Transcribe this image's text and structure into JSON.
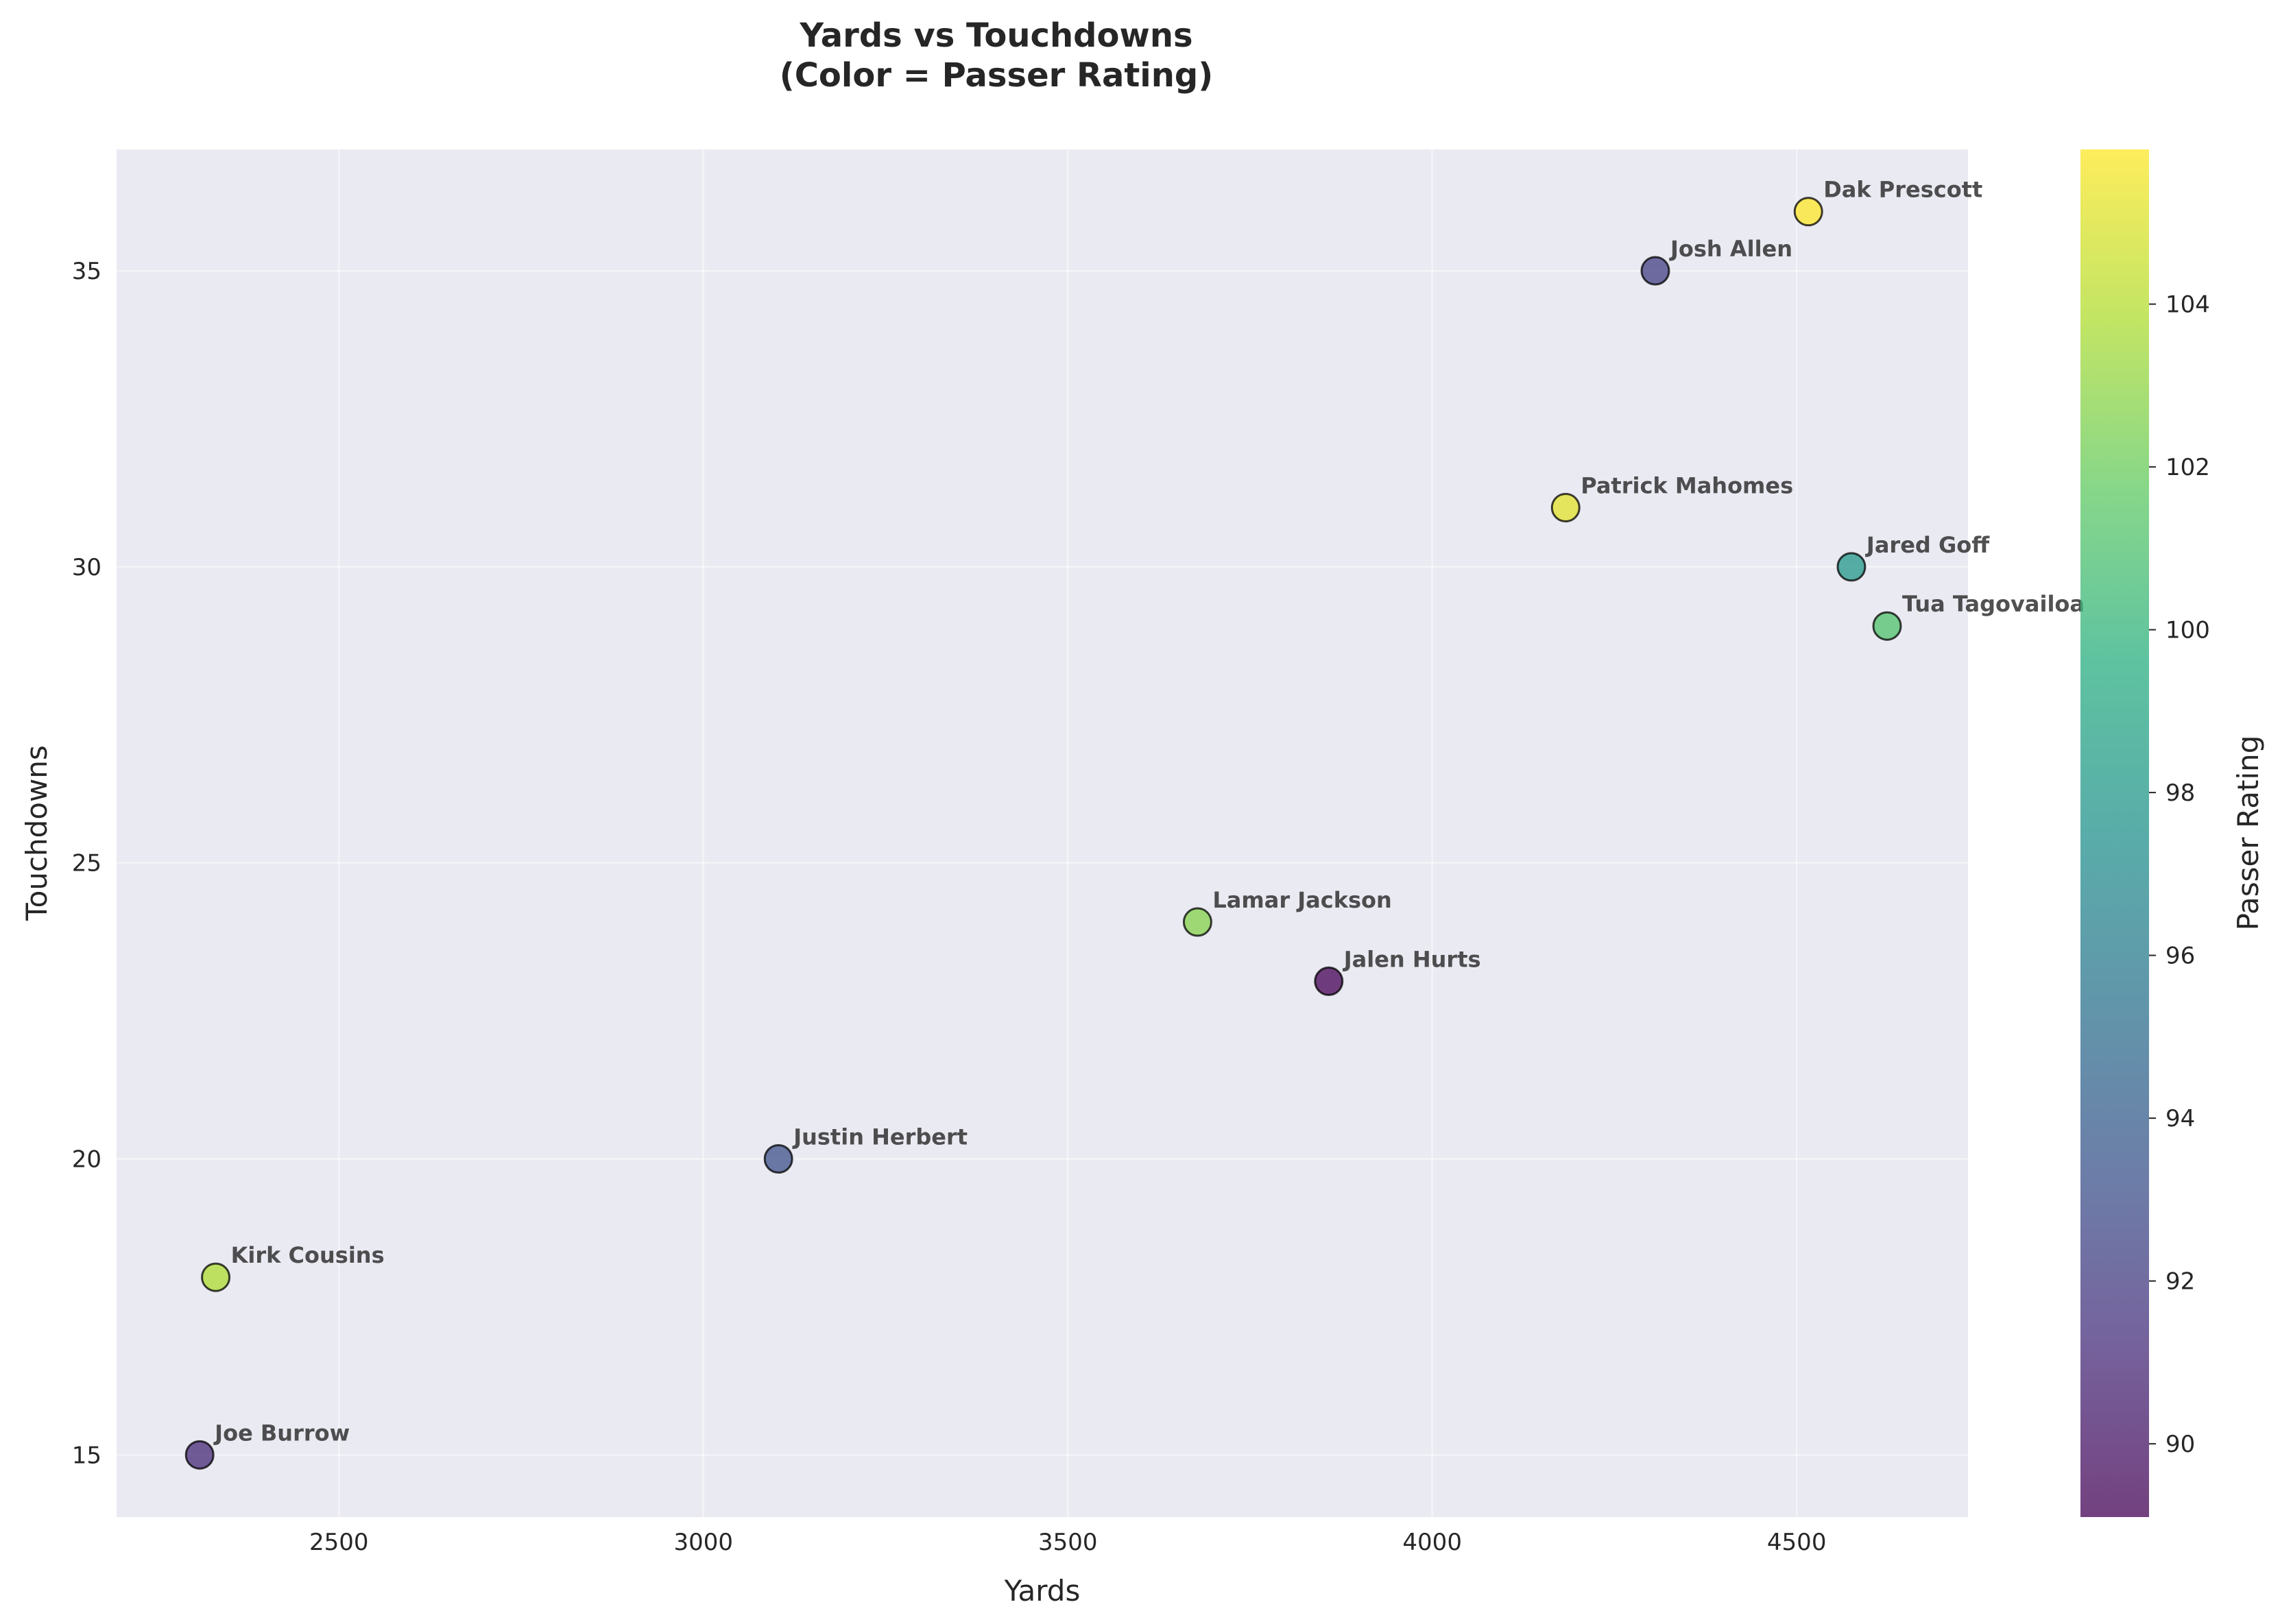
{
  "chart_data": {
    "type": "scatter",
    "title": "Yards vs Touchdowns\n(Color = Passer Rating)",
    "xlabel": "Yards",
    "ylabel": "Touchdowns",
    "colorbar_label": "Passer Rating",
    "xlim": [
      2195,
      4735
    ],
    "ylim": [
      13.95,
      37.05
    ],
    "xticks": [
      2500,
      3000,
      3500,
      4000,
      4500
    ],
    "yticks": [
      15,
      20,
      25,
      30,
      35
    ],
    "colorbar_range": [
      89.1,
      105.9
    ],
    "colorbar_ticks": [
      90,
      92,
      94,
      96,
      98,
      100,
      102,
      104
    ],
    "colormap": "viridis",
    "grid": true,
    "legend": false,
    "points": [
      {
        "label": "Dak Prescott",
        "x": 4516,
        "y": 36,
        "rating": 105.9
      },
      {
        "label": "Josh Allen",
        "x": 4306,
        "y": 35,
        "rating": 92.2
      },
      {
        "label": "Patrick Mahomes",
        "x": 4183,
        "y": 31,
        "rating": 105.2
      },
      {
        "label": "Jared Goff",
        "x": 4575,
        "y": 30,
        "rating": 97.9
      },
      {
        "label": "Tua Tagovailoa",
        "x": 4624,
        "y": 29,
        "rating": 101.1
      },
      {
        "label": "Lamar Jackson",
        "x": 3678,
        "y": 24,
        "rating": 102.7
      },
      {
        "label": "Jalen Hurts",
        "x": 3858,
        "y": 23,
        "rating": 89.1
      },
      {
        "label": "Justin Herbert",
        "x": 3103,
        "y": 20,
        "rating": 93.2
      },
      {
        "label": "Kirk Cousins",
        "x": 2331,
        "y": 18,
        "rating": 103.8
      },
      {
        "label": "Joe Burrow",
        "x": 2309,
        "y": 15,
        "rating": 91.0
      }
    ]
  }
}
